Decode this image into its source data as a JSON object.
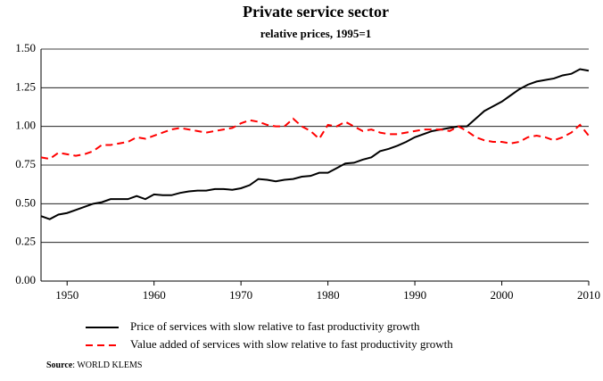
{
  "chart_data": {
    "type": "line",
    "title": "Private service sector",
    "subtitle": "relative prices, 1995=1",
    "x": [
      1947,
      1948,
      1949,
      1950,
      1951,
      1952,
      1953,
      1954,
      1955,
      1956,
      1957,
      1958,
      1959,
      1960,
      1961,
      1962,
      1963,
      1964,
      1965,
      1966,
      1967,
      1968,
      1969,
      1970,
      1971,
      1972,
      1973,
      1974,
      1975,
      1976,
      1977,
      1978,
      1979,
      1980,
      1981,
      1982,
      1983,
      1984,
      1985,
      1986,
      1987,
      1988,
      1989,
      1990,
      1991,
      1992,
      1993,
      1994,
      1995,
      1996,
      1997,
      1998,
      1999,
      2000,
      2001,
      2002,
      2003,
      2004,
      2005,
      2006,
      2007,
      2008,
      2009,
      2010
    ],
    "series": [
      {
        "name": "Price of services with slow relative to fast productivity growth",
        "color": "#000000",
        "dash": "solid",
        "values": [
          0.42,
          0.4,
          0.43,
          0.44,
          0.46,
          0.48,
          0.5,
          0.51,
          0.53,
          0.53,
          0.53,
          0.55,
          0.53,
          0.56,
          0.555,
          0.555,
          0.57,
          0.58,
          0.585,
          0.585,
          0.595,
          0.595,
          0.59,
          0.6,
          0.62,
          0.66,
          0.655,
          0.645,
          0.655,
          0.66,
          0.675,
          0.68,
          0.7,
          0.7,
          0.73,
          0.76,
          0.765,
          0.785,
          0.8,
          0.84,
          0.855,
          0.875,
          0.9,
          0.93,
          0.95,
          0.97,
          0.98,
          0.99,
          1.0,
          1.0,
          1.05,
          1.1,
          1.13,
          1.16,
          1.2,
          1.24,
          1.27,
          1.29,
          1.3,
          1.31,
          1.33,
          1.34,
          1.37,
          1.36
        ]
      },
      {
        "name": "Value added of services with slow relative to fast productivity growth",
        "color": "#ff0000",
        "dash": "dashed",
        "values": [
          0.8,
          0.79,
          0.83,
          0.82,
          0.81,
          0.82,
          0.84,
          0.88,
          0.88,
          0.89,
          0.9,
          0.93,
          0.92,
          0.94,
          0.96,
          0.98,
          0.99,
          0.98,
          0.97,
          0.96,
          0.97,
          0.98,
          0.99,
          1.02,
          1.04,
          1.03,
          1.01,
          1.0,
          1.0,
          1.05,
          1.0,
          0.97,
          0.92,
          1.01,
          1.0,
          1.03,
          1.0,
          0.97,
          0.98,
          0.96,
          0.95,
          0.95,
          0.96,
          0.97,
          0.98,
          0.98,
          0.98,
          0.97,
          1.0,
          0.97,
          0.93,
          0.91,
          0.9,
          0.9,
          0.89,
          0.9,
          0.93,
          0.94,
          0.93,
          0.91,
          0.93,
          0.96,
          1.01,
          0.94
        ]
      }
    ],
    "xlim": [
      1947,
      2010
    ],
    "xticks": [
      1950,
      1960,
      1970,
      1980,
      1990,
      2000,
      2010
    ],
    "ylim": [
      0,
      1.5
    ],
    "yticks": [
      {
        "value": 0,
        "label": "0.00"
      },
      {
        "value": 0.25,
        "label": "0.25"
      },
      {
        "value": 0.5,
        "label": "0.50"
      },
      {
        "value": 0.75,
        "label": "0.75"
      },
      {
        "value": 1,
        "label": "1.00"
      },
      {
        "value": 1.25,
        "label": "1.25"
      },
      {
        "value": 1.5,
        "label": "1.50"
      }
    ],
    "grid": true,
    "legend": "bottom",
    "source_label": "Source",
    "source_text": ": WORLD KLEMS"
  }
}
